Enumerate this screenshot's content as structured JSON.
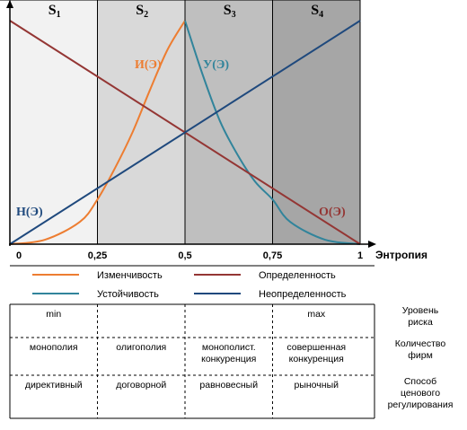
{
  "chart_data": {
    "type": "line",
    "x_axis": {
      "label": "Энтропия",
      "ticks": [
        "0",
        "0,25",
        "0,5",
        "0,75",
        "1"
      ],
      "range": [
        0,
        1
      ]
    },
    "y_range": [
      0,
      1
    ],
    "stages": [
      {
        "main": "S",
        "sub": "1",
        "from": 0,
        "to": 0.25,
        "fill": "#f2f2f2"
      },
      {
        "main": "S",
        "sub": "2",
        "from": 0.25,
        "to": 0.5,
        "fill": "#d9d9d9"
      },
      {
        "main": "S",
        "sub": "3",
        "from": 0.5,
        "to": 0.75,
        "fill": "#bfbfbf"
      },
      {
        "main": "S",
        "sub": "4",
        "from": 0.75,
        "to": 1,
        "fill": "#a6a6a6"
      }
    ],
    "series": [
      {
        "name": "Изменчивость",
        "label": "И(Э)",
        "color": "#ed7d31",
        "x": [
          0,
          0.1,
          0.2,
          0.25,
          0.3,
          0.35,
          0.4,
          0.45,
          0.5
        ],
        "y": [
          0,
          0.02,
          0.1,
          0.2,
          0.34,
          0.5,
          0.69,
          0.87,
          1.0
        ]
      },
      {
        "name": "Устойчивость",
        "label": "У(Э)",
        "color": "#31849b",
        "x": [
          0.5,
          0.55,
          0.6,
          0.65,
          0.7,
          0.75,
          0.8,
          0.9,
          1.0
        ],
        "y": [
          1.0,
          0.76,
          0.55,
          0.4,
          0.28,
          0.2,
          0.1,
          0.02,
          0
        ]
      },
      {
        "name": "Определенность",
        "label": "О(Э)",
        "color": "#943634",
        "x": [
          0,
          1
        ],
        "y": [
          1,
          0
        ]
      },
      {
        "name": "Неопределенность",
        "label": "Н(Э)",
        "color": "#1f497d",
        "x": [
          0,
          1
        ],
        "y": [
          0,
          1
        ]
      }
    ],
    "legend": [
      {
        "text": "Изменчивость",
        "color": "#ed7d31"
      },
      {
        "text": "Определенность",
        "color": "#943634"
      },
      {
        "text": "Устойчивость",
        "color": "#31849b"
      },
      {
        "text": "Неопределенность",
        "color": "#1f497d"
      }
    ],
    "table": {
      "rows": [
        {
          "header": [
            "Уровень",
            "риска"
          ],
          "cells": [
            [
              "min"
            ],
            [],
            [],
            [
              "max"
            ]
          ]
        },
        {
          "header": [
            "Количество",
            "фирм"
          ],
          "cells": [
            [
              "монополия"
            ],
            [
              "олигополия"
            ],
            [
              "монополист.",
              "конкуренция"
            ],
            [
              "совершенная",
              "конкуренция"
            ]
          ]
        },
        {
          "header": [
            "Способ",
            "ценового",
            "регулирования"
          ],
          "cells": [
            [
              "директивный"
            ],
            [
              "договорной"
            ],
            [
              "равновесный"
            ],
            [
              "рыночный"
            ]
          ]
        }
      ]
    }
  }
}
